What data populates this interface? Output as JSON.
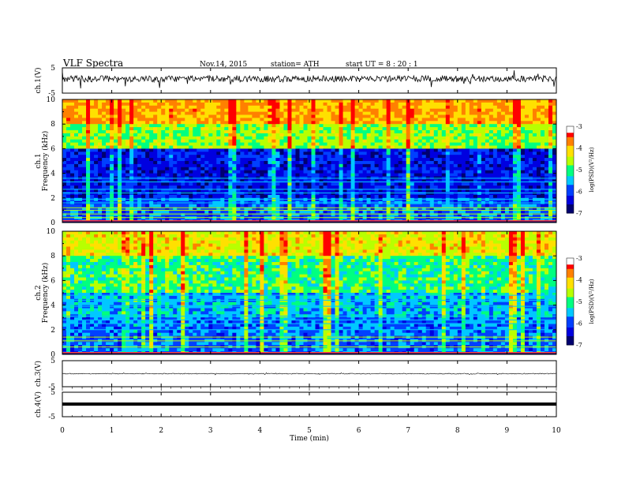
{
  "header": {
    "title": "VLF  Spectra",
    "date": "Nov.14, 2015",
    "station": "station= ATH",
    "start_ut": "start  UT  =   8  : 20 : 1"
  },
  "chart_data": [
    {
      "type": "line",
      "panel": "ch1-waveform",
      "ylabel": "ch.1(V)",
      "ylim": [
        -5,
        5
      ],
      "yticks": [
        "5",
        "-5"
      ],
      "description_level": 1.1
    },
    {
      "type": "heatmap",
      "panel": "ch1-spectrogram",
      "ylabel": "ch.1\nFrequency  (kHz)",
      "ylim": [
        0,
        10
      ],
      "yticks": [
        "0",
        "2",
        "4",
        "6",
        "8",
        "10"
      ],
      "colorbar": {
        "label": "log(PSD)(V²/Hz)",
        "range": [
          -7,
          -3
        ],
        "ticks": [
          "-3",
          "-4",
          "-5",
          "-6",
          "-7"
        ]
      }
    },
    {
      "type": "heatmap",
      "panel": "ch2-spectrogram",
      "ylabel": "ch.2\nFrequency  (kHz)",
      "ylim": [
        0,
        10
      ],
      "yticks": [
        "0",
        "2",
        "4",
        "6",
        "8",
        "10"
      ],
      "colorbar": {
        "label": "log(PSD)(V²/Hz)",
        "range": [
          -7,
          -3
        ],
        "ticks": [
          "-3",
          "-4",
          "-5",
          "-6",
          "-7"
        ]
      }
    },
    {
      "type": "line",
      "panel": "ch3-waveform",
      "ylabel": "ch.3(V)",
      "ylim": [
        -5,
        5
      ],
      "yticks": [
        "5",
        "-5"
      ]
    },
    {
      "type": "line",
      "panel": "ch4-waveform",
      "ylabel": "ch.4(V)",
      "ylim": [
        -5,
        5
      ],
      "yticks": [
        "5",
        "-5"
      ]
    }
  ],
  "xaxis": {
    "label": "Time  (min)",
    "range": [
      0,
      10
    ],
    "ticks": [
      "0",
      "1",
      "2",
      "3",
      "4",
      "5",
      "6",
      "7",
      "8",
      "9",
      "10"
    ]
  },
  "colors": {
    "spectrum": [
      "#000070",
      "#0000e0",
      "#0040ff",
      "#00c8ff",
      "#00ff80",
      "#b8ff00",
      "#ffe000",
      "#ff8000",
      "#ff0000",
      "#ffffff"
    ]
  }
}
